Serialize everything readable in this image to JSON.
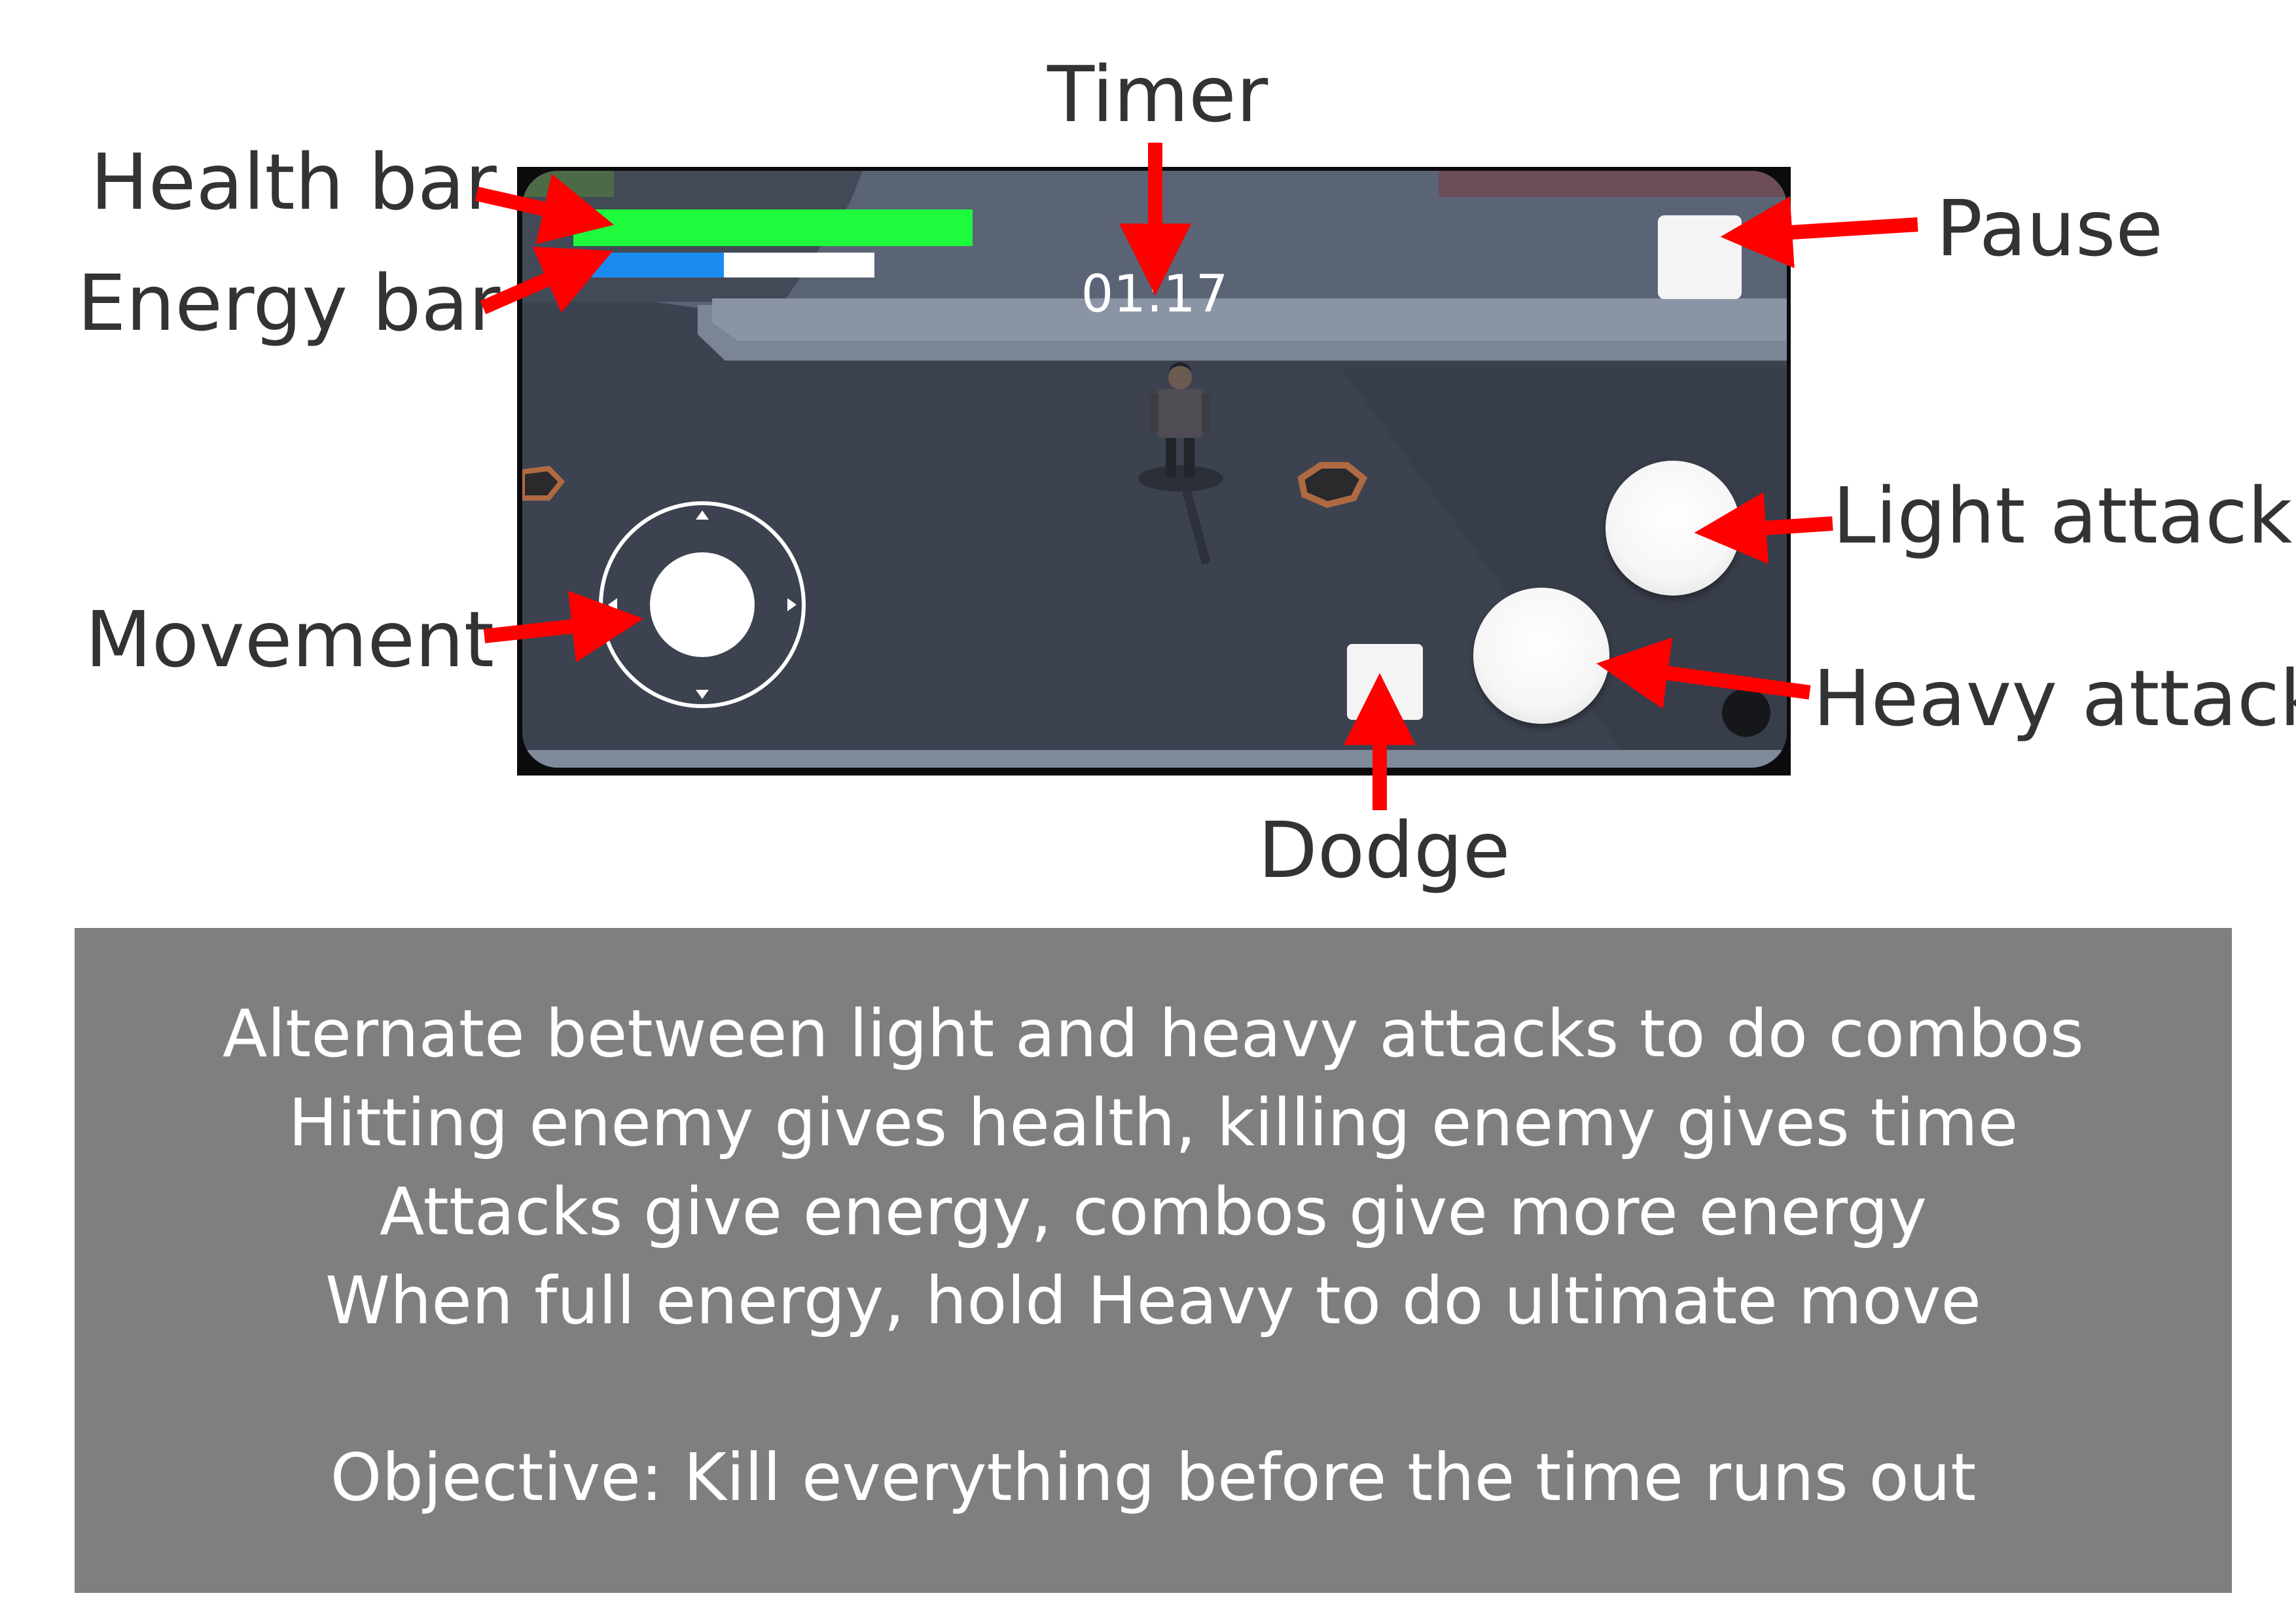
{
  "callouts": {
    "timer": "Timer",
    "health_bar": "Health bar",
    "energy_bar": "Energy bar",
    "pause": "Pause",
    "light_attack": "Light attack",
    "movement": "Movement",
    "heavy_attack": "Heavy attack",
    "dodge": "Dodge"
  },
  "hud": {
    "timer": "01:17",
    "health_fraction": 1.0,
    "energy_fraction": 0.5
  },
  "instructions": {
    "line1": "Alternate between light and heavy attacks to do combos",
    "line2": "Hitting enemy gives health, killing enemy gives time",
    "line3": "Attacks give energy, combos give more energy",
    "line4": "When full energy, hold Heavy to do ultimate move",
    "objective": "Objective: Kill everything before the time runs out"
  },
  "colors": {
    "arrow": "#ff0000",
    "health": "#1dfb3c",
    "energy": "#1a8cf0",
    "panel": "#7f7f7f",
    "label_text": "#333333"
  },
  "icons": {
    "joystick_up": "triangle-up-icon",
    "joystick_down": "triangle-down-icon",
    "joystick_left": "triangle-left-icon",
    "joystick_right": "triangle-right-icon"
  }
}
